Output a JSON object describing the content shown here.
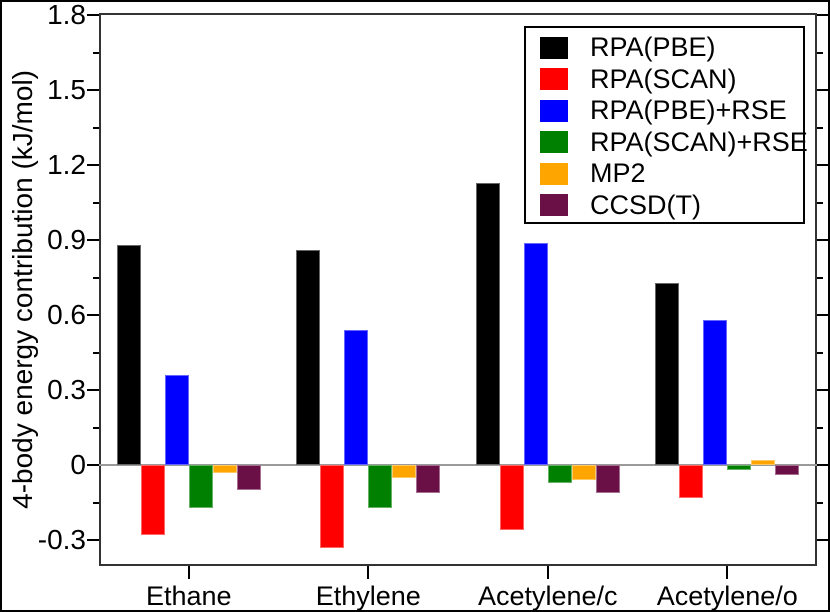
{
  "chart_data": {
    "type": "bar",
    "title": "",
    "xlabel": "",
    "ylabel": "4-body energy contribution (kJ/mol)",
    "ylim": [
      -0.4,
      1.8
    ],
    "grid": false,
    "zero_line": true,
    "legend_position": "top-right-inside",
    "categories": [
      "Ethane",
      "Ethylene",
      "Acetylene/c",
      "Acetylene/o"
    ],
    "series": [
      {
        "name": "RPA(PBE)",
        "color": "#000000",
        "values": [
          0.88,
          0.86,
          1.13,
          0.73
        ]
      },
      {
        "name": "RPA(SCAN)",
        "color": "#ff0000",
        "values": [
          -0.28,
          -0.33,
          -0.26,
          -0.13
        ]
      },
      {
        "name": "RPA(PBE)+RSE",
        "color": "#0000ff",
        "values": [
          0.36,
          0.54,
          0.89,
          0.58
        ]
      },
      {
        "name": "RPA(SCAN)+RSE",
        "color": "#008000",
        "values": [
          -0.17,
          -0.17,
          -0.07,
          -0.02
        ]
      },
      {
        "name": "MP2",
        "color": "#ffa500",
        "values": [
          -0.03,
          -0.05,
          -0.06,
          0.02
        ]
      },
      {
        "name": "CCSD(T)",
        "color": "#6b0f47",
        "values": [
          -0.1,
          -0.11,
          -0.11,
          -0.04
        ]
      }
    ],
    "yticks": [
      {
        "label": "1.8",
        "value": 1.8
      },
      {
        "label": "1.5",
        "value": 1.5
      },
      {
        "label": "1.2",
        "value": 1.2
      },
      {
        "label": "0.9",
        "value": 0.9
      },
      {
        "label": "0.6",
        "value": 0.6
      },
      {
        "label": "0.3",
        "value": 0.3
      },
      {
        "label": "0",
        "value": 0
      },
      {
        "label": "-0.3",
        "value": -0.3
      }
    ],
    "yticks_minor": [
      1.65,
      1.35,
      1.05,
      0.75,
      0.45,
      0.15,
      -0.15
    ]
  }
}
